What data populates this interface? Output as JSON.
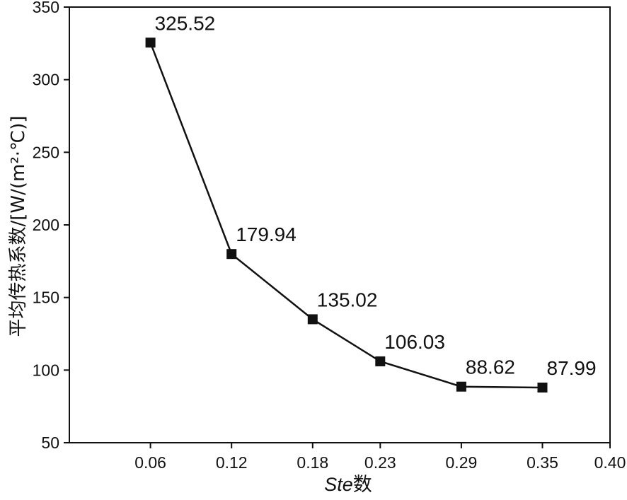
{
  "chart_data": {
    "type": "line",
    "x": [
      0.06,
      0.12,
      0.18,
      0.23,
      0.29,
      0.35
    ],
    "series": [
      {
        "values": [
          325.52,
          179.94,
          135.02,
          106.03,
          88.62,
          87.99
        ]
      }
    ],
    "data_labels": [
      "325.52",
      "179.94",
      "135.02",
      "106.03",
      "88.62",
      "87.99"
    ],
    "x_ticks": [
      "0.06",
      "0.12",
      "0.18",
      "0.23",
      "0.29",
      "0.35",
      "0.40"
    ],
    "y_ticks": [
      "50",
      "100",
      "150",
      "200",
      "250",
      "300",
      "350"
    ],
    "x_tick_values": [
      0.06,
      0.12,
      0.18,
      0.23,
      0.29,
      0.35,
      0.4
    ],
    "y_tick_values": [
      50,
      100,
      150,
      200,
      250,
      300,
      350
    ],
    "xlabel_italic": "Ste",
    "xlabel_suffix": "数",
    "ylabel": "平均传热系数/[W/(m²·℃)]",
    "xlim": [
      0.0,
      0.4
    ],
    "ylim": [
      50,
      350
    ],
    "grid": false,
    "marker": "square",
    "color": "#111111"
  }
}
